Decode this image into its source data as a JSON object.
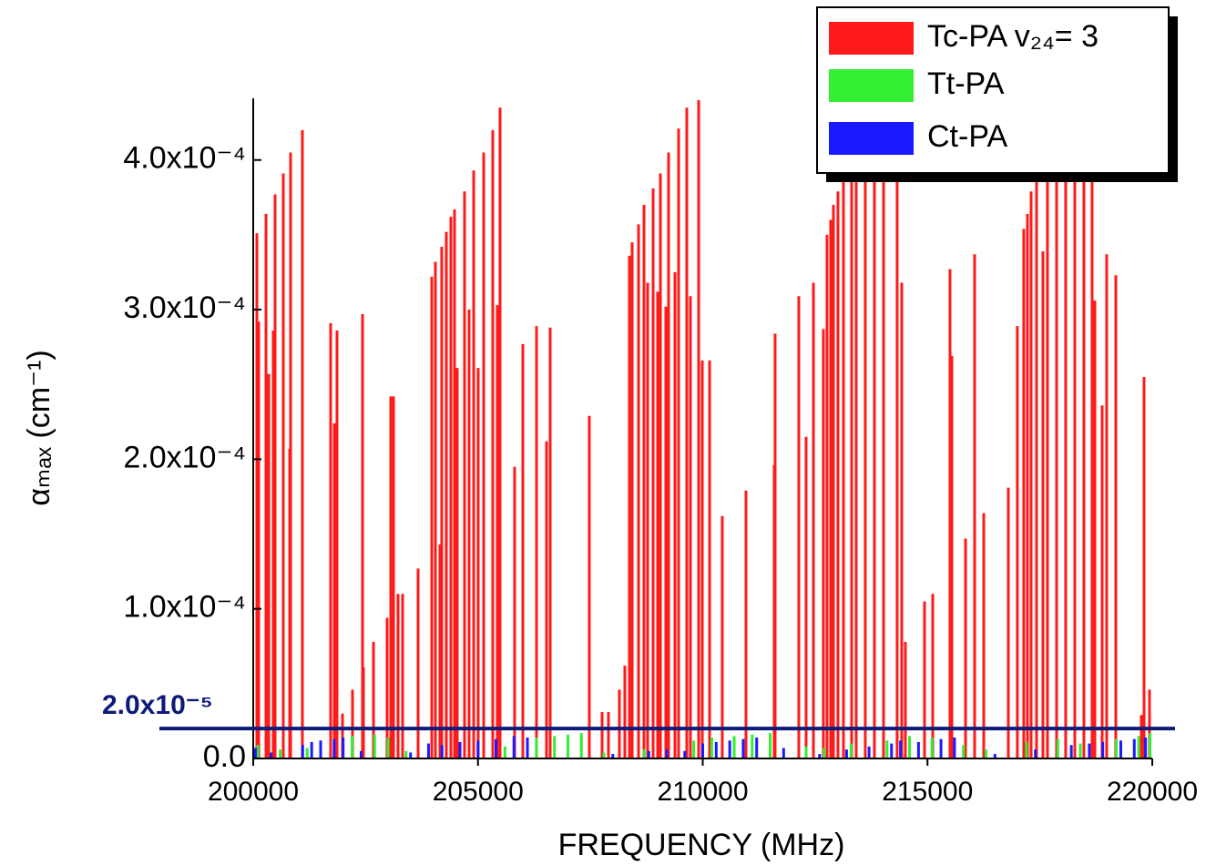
{
  "chart_data": {
    "type": "stick",
    "x_label": "FREQUENCY  (MHz)",
    "y_label": "αₘₐₓ (cm⁻¹)",
    "xlim": [
      200000,
      220000
    ],
    "xticks": [
      200000,
      205000,
      210000,
      215000,
      220000
    ],
    "ylim": [
      0,
      0.00044
    ],
    "yticks": [
      {
        "value": 0,
        "label": "0.0"
      },
      {
        "value": 0.0001,
        "label": "1.0x10⁻⁴"
      },
      {
        "value": 0.0002,
        "label": "2.0x10⁻⁴"
      },
      {
        "value": 0.0003,
        "label": "3.0x10⁻⁴"
      },
      {
        "value": 0.0004,
        "label": "4.0x10⁻⁴"
      }
    ],
    "threshold": {
      "value": 2e-05,
      "label": "2.0x10⁻⁵",
      "color": "#0d1a7a"
    },
    "legend": "top-right",
    "series": [
      {
        "name": "Tc-PA  v₂₄= 3",
        "color": "#ff1a1a",
        "x": [
          200081,
          200122,
          200284,
          200345,
          200446,
          200486,
          200669,
          200811,
          200831,
          201094,
          201722,
          201803,
          201864,
          201986,
          202209,
          202432,
          202452,
          202675,
          202979,
          203060,
          203121,
          203222,
          203323,
          203668,
          203972,
          204053,
          204154,
          204194,
          204296,
          204397,
          204478,
          204539,
          204701,
          204802,
          204904,
          205005,
          205127,
          205329,
          205430,
          205491,
          205815,
          205998,
          206302,
          206525,
          206606,
          207477,
          207761,
          207903,
          208146,
          208267,
          208369,
          208430,
          208572,
          208693,
          208774,
          208896,
          208997,
          209058,
          209179,
          209240,
          209382,
          209463,
          209645,
          209726,
          209909,
          209990,
          210152,
          210435,
          210962,
          211590,
          211610,
          212137,
          212299,
          212462,
          212684,
          212765,
          212846,
          212907,
          213008,
          213130,
          213312,
          213414,
          213616,
          213819,
          214022,
          214325,
          214427,
          214508,
          214934,
          215116,
          215501,
          215542,
          215846,
          216048,
          216251,
          216798,
          216999,
          217142,
          217224,
          217305,
          217426,
          217568,
          217669,
          217872,
          218074,
          218277,
          218479,
          218662,
          218723,
          218885,
          218986,
          219189,
          219757,
          219817,
          219939
        ],
        "values": [
          0.000351,
          0.000292,
          0.000364,
          0.000257,
          0.000286,
          0.000377,
          0.000391,
          0.000207,
          0.000405,
          0.00042,
          0.000291,
          0.000224,
          0.000286,
          3e-05,
          4.6e-05,
          0.000297,
          6.1e-05,
          7.8e-05,
          9.4e-05,
          0.000242,
          0.000242,
          0.00011,
          0.00011,
          0.000127,
          0.000322,
          0.000332,
          0.000143,
          0.000342,
          0.000352,
          0.000362,
          0.000367,
          0.000261,
          0.000379,
          0.0003,
          0.000393,
          0.000261,
          0.000405,
          0.00042,
          0.000303,
          0.000435,
          0.000195,
          0.000277,
          0.000289,
          0.000212,
          0.000288,
          0.000229,
          3.1e-05,
          3.1e-05,
          4.6e-05,
          6.2e-05,
          0.000336,
          0.000345,
          0.000357,
          0.00037,
          0.000318,
          0.000381,
          0.000312,
          0.000391,
          0.000302,
          0.000405,
          0.000325,
          0.000421,
          0.000435,
          0.000309,
          0.00044,
          0.000266,
          0.000266,
          0.000162,
          0.000179,
          0.000196,
          0.000284,
          0.000309,
          0.000215,
          0.000318,
          0.000287,
          0.00035,
          0.00036,
          0.00037,
          0.000379,
          0.000391,
          0.000403,
          0.000415,
          0.0004,
          0.000415,
          0.00041,
          0.0004,
          0.000318,
          7.8e-05,
          0.000105,
          0.00011,
          0.000327,
          0.000269,
          0.000147,
          0.000337,
          0.000164,
          0.000181,
          0.000289,
          0.000354,
          0.000364,
          0.000379,
          0.000391,
          0.000339,
          0.0004,
          0.000405,
          0.00041,
          0.0004,
          0.00041,
          0.000395,
          0.000306,
          0.000236,
          0.000337,
          0.000323,
          2.9e-05,
          0.000255,
          4.6e-05
        ]
      },
      {
        "name": "Tt-PA",
        "color": "#33ee33",
        "x": [
          200100,
          200600,
          201200,
          202200,
          202700,
          203000,
          203400,
          205600,
          206300,
          206700,
          207000,
          207300,
          207800,
          208700,
          209800,
          210200,
          210700,
          211100,
          211500,
          212300,
          212700,
          213300,
          214100,
          214600,
          215100,
          215800,
          216300,
          217200,
          217900,
          218400,
          219200,
          219700,
          219950
        ],
        "values": [
          9e-06,
          6e-06,
          7e-06,
          1.5e-05,
          1.6e-05,
          1.4e-05,
          5e-06,
          8e-06,
          1.4e-05,
          1.5e-05,
          1.6e-05,
          1.7e-05,
          4e-06,
          6e-06,
          1.2e-05,
          1.4e-05,
          1.5e-05,
          1.6e-05,
          1.7e-05,
          8e-06,
          7e-06,
          1e-05,
          1.2e-05,
          1.5e-05,
          1.4e-05,
          9e-06,
          6e-06,
          1.1e-05,
          1.3e-05,
          1e-05,
          1.3e-05,
          1.5e-05,
          1.7e-05
        ]
      },
      {
        "name": "Ct-PA",
        "color": "#1a1aff",
        "x": [
          200050,
          200400,
          201100,
          201300,
          201500,
          201800,
          202000,
          202400,
          203500,
          203900,
          204200,
          204600,
          205000,
          205400,
          205800,
          206100,
          208000,
          208800,
          209200,
          209600,
          210000,
          210300,
          210600,
          210900,
          211200,
          211800,
          212600,
          213200,
          213700,
          214200,
          214400,
          214800,
          215300,
          215600,
          216500,
          217400,
          218200,
          218600,
          218900,
          219300,
          219600,
          219850
        ],
        "values": [
          7e-06,
          4e-06,
          9e-06,
          1.1e-05,
          1.2e-05,
          1.3e-05,
          1.4e-05,
          5e-06,
          4e-06,
          1e-05,
          9e-06,
          1.1e-05,
          1.2e-05,
          1.3e-05,
          1.5e-05,
          1.4e-05,
          3e-06,
          5e-06,
          6e-06,
          5e-06,
          1e-05,
          1.1e-05,
          1.2e-05,
          1.3e-05,
          1.4e-05,
          7e-06,
          3e-06,
          6e-06,
          8e-06,
          1e-05,
          1.2e-05,
          1.1e-05,
          1.3e-05,
          1.4e-05,
          3e-06,
          6e-06,
          9e-06,
          1e-05,
          1.1e-05,
          1.2e-05,
          1.3e-05,
          1.4e-05
        ]
      }
    ]
  }
}
